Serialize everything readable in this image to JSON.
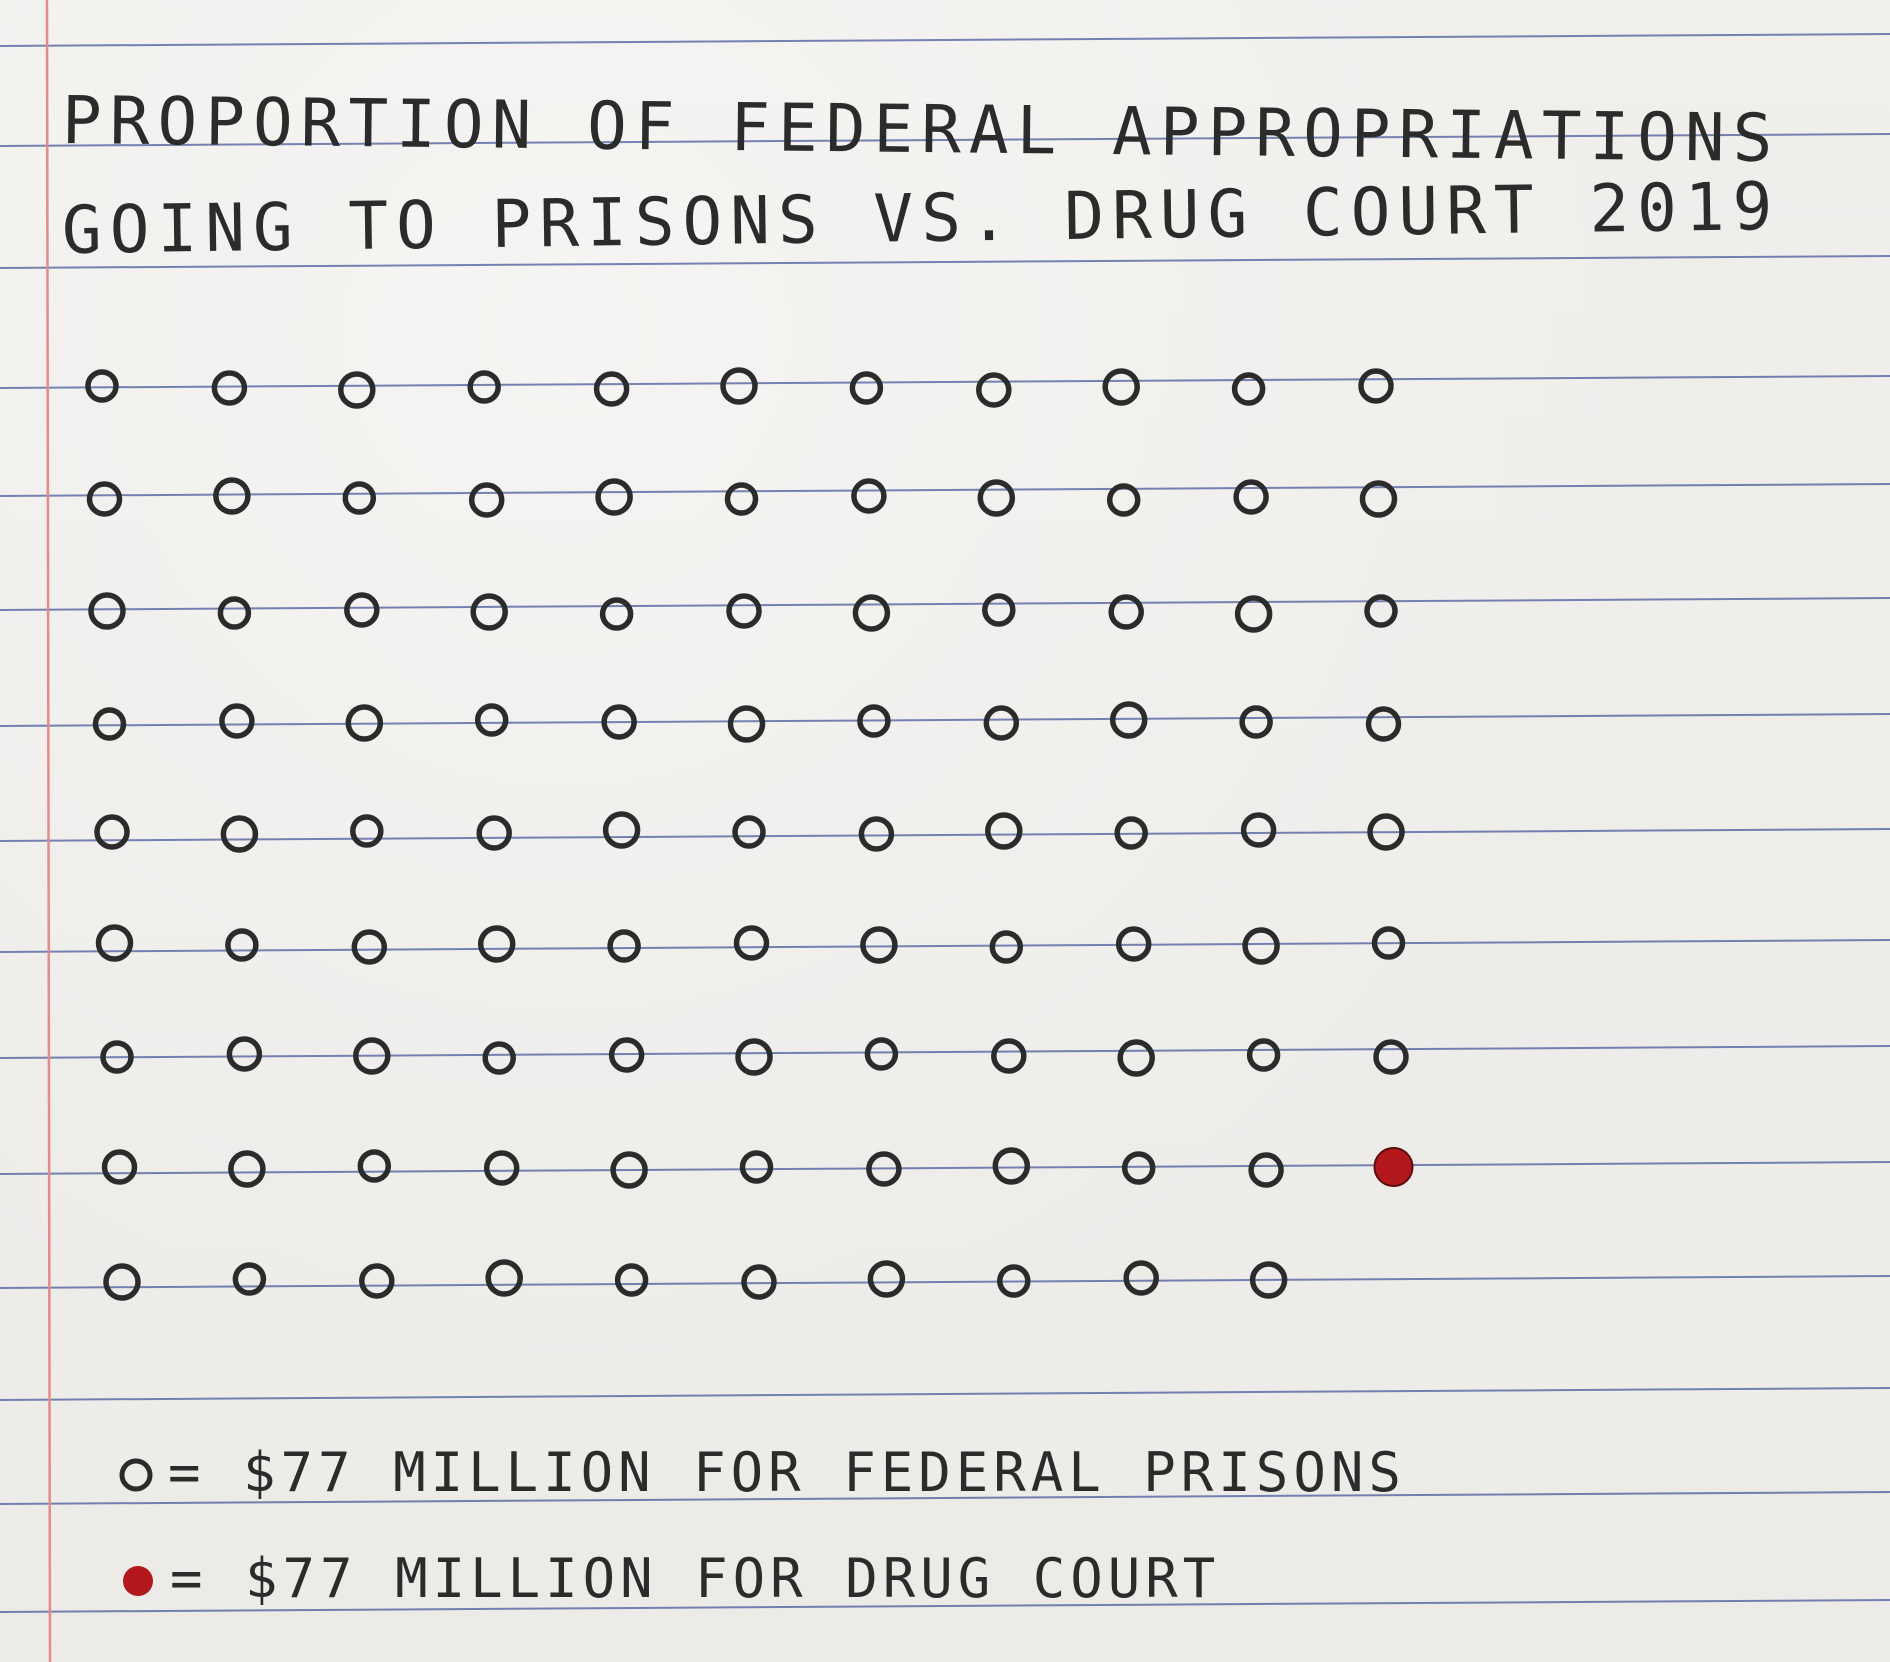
{
  "chart_data": {
    "type": "pictogram",
    "title_lines": [
      "PROPORTION OF FEDERAL APPROPRIATIONS",
      "GOING TO PRISONS VS. DRUG COURT 2019"
    ],
    "unit": "$77 MILLION",
    "rows": [
      11,
      11,
      11,
      11,
      11,
      11,
      11,
      11,
      10
    ],
    "filled": [
      {
        "row": 8,
        "col": 11
      }
    ],
    "categories": [
      "FEDERAL PRISONS",
      "DRUG COURT"
    ],
    "values": [
      98,
      1
    ],
    "legend": [
      {
        "text": "= $77 MILLION FOR FEDERAL PRISONS",
        "symbol": "open-circle"
      },
      {
        "text": "= $77 MILLION FOR DRUG COURT",
        "symbol": "filled-circle"
      }
    ],
    "colors": {
      "ink": "#2c2b2b",
      "drug_court": "#b3181c",
      "rule": "#4a5c9c",
      "margin": "#e58a8a"
    }
  }
}
